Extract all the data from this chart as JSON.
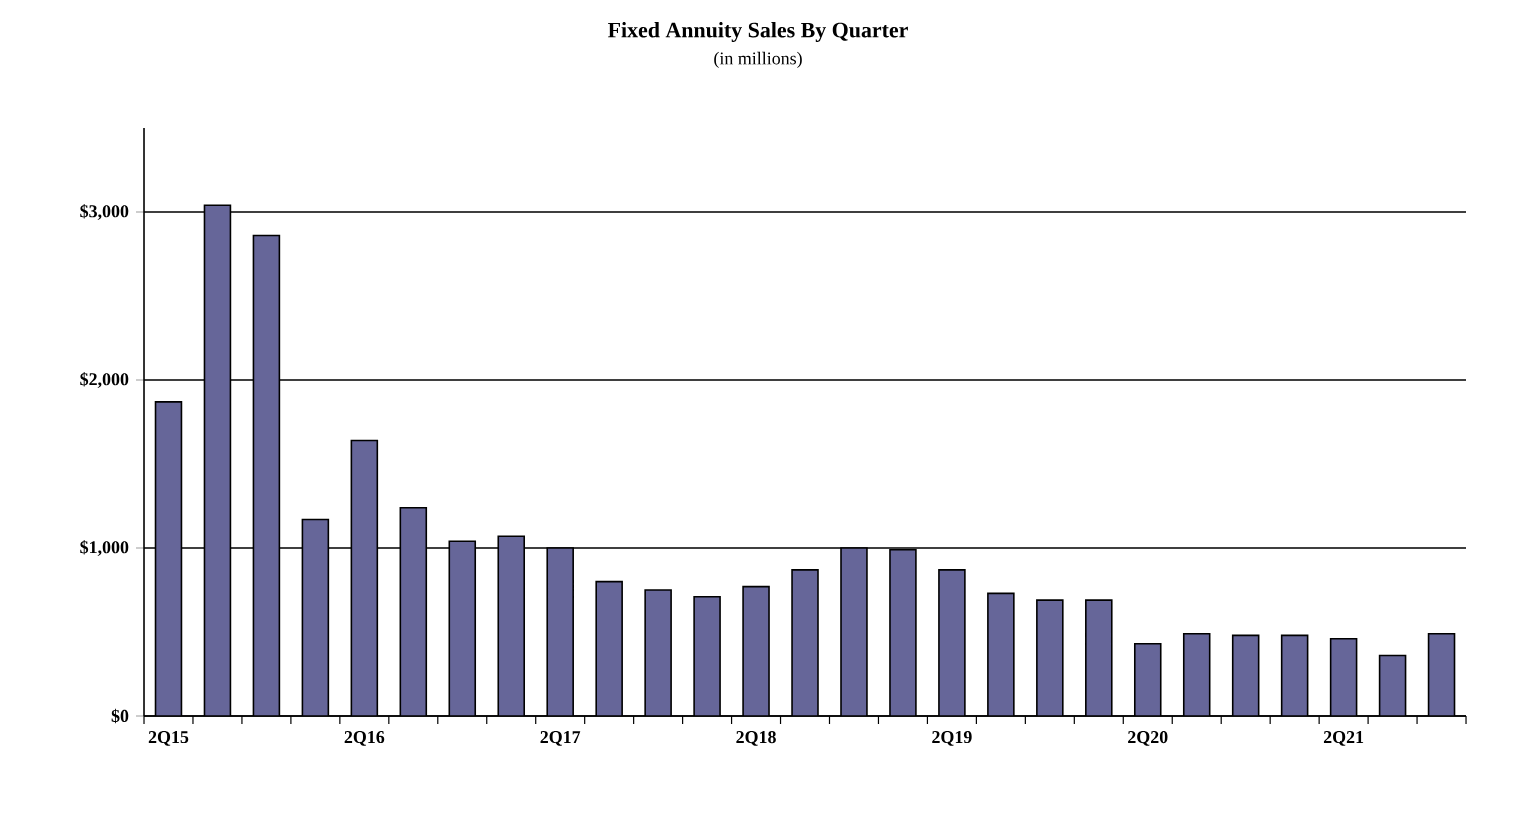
{
  "chart_data": {
    "type": "bar",
    "title": "Fixed Annuity Sales By Quarter",
    "subtitle": "(in millions)",
    "categories": [
      "2Q15",
      null,
      null,
      null,
      "2Q16",
      null,
      null,
      null,
      "2Q17",
      null,
      null,
      null,
      "2Q18",
      null,
      null,
      null,
      "2Q19",
      null,
      null,
      null,
      "2Q20",
      null,
      null,
      null,
      "2Q21",
      null,
      null
    ],
    "values": [
      1870,
      3040,
      2860,
      1170,
      1640,
      1240,
      1040,
      1070,
      1000,
      800,
      750,
      710,
      770,
      870,
      1000,
      990,
      870,
      730,
      690,
      690,
      430,
      490,
      480,
      480,
      460,
      360,
      490
    ],
    "color": "#666699",
    "ylim": [
      0,
      3500
    ],
    "yticks": [
      {
        "value": 0,
        "label": "$0"
      },
      {
        "value": 1000,
        "label": "$1,000"
      },
      {
        "value": 2000,
        "label": "$2,000"
      },
      {
        "value": 3000,
        "label": "$3,000"
      }
    ],
    "grid": "y"
  }
}
